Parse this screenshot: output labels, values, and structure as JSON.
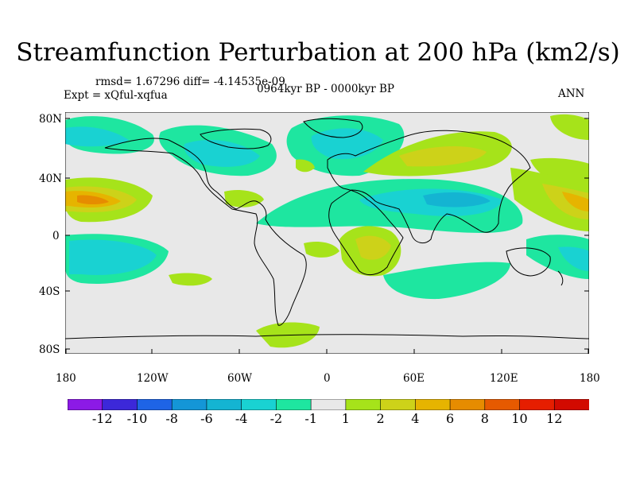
{
  "title": "Streamfunction Perturbation at 200 hPa (km2/s)",
  "stats": "rmsd= 1.67296 diff= -4.14535e-09",
  "experiment": "Expt = xQful-xqfua",
  "period": "0964kyr BP - 0000kyr BP",
  "season": "ANN",
  "lat_ticks": [
    "80N",
    "40N",
    "0",
    "40S",
    "80S"
  ],
  "lon_ticks": [
    "180",
    "120W",
    "60W",
    "0",
    "60E",
    "120E",
    "180"
  ],
  "colorbar": {
    "labels": [
      "-12",
      "-10",
      "-8",
      "-6",
      "-4",
      "-2",
      "-1",
      "1",
      "2",
      "4",
      "6",
      "8",
      "10",
      "12"
    ],
    "colors": [
      "#8c1ae6",
      "#3c28d9",
      "#1e64e6",
      "#1496d7",
      "#14b4d2",
      "#19d2d2",
      "#1ee6a0",
      "#e8e8e8",
      "#a6e31a",
      "#cdd219",
      "#e6b400",
      "#e68c00",
      "#e65a00",
      "#e61e00",
      "#d20a00"
    ]
  },
  "colors": {
    "background": "#e8e8e8",
    "neg1": "#1ee6a0",
    "neg2": "#19d2d2",
    "neg3": "#14b4d2",
    "pos1": "#a6e31a",
    "pos2": "#cdd219",
    "pos3": "#e6b400",
    "pos4": "#e68c00"
  }
}
